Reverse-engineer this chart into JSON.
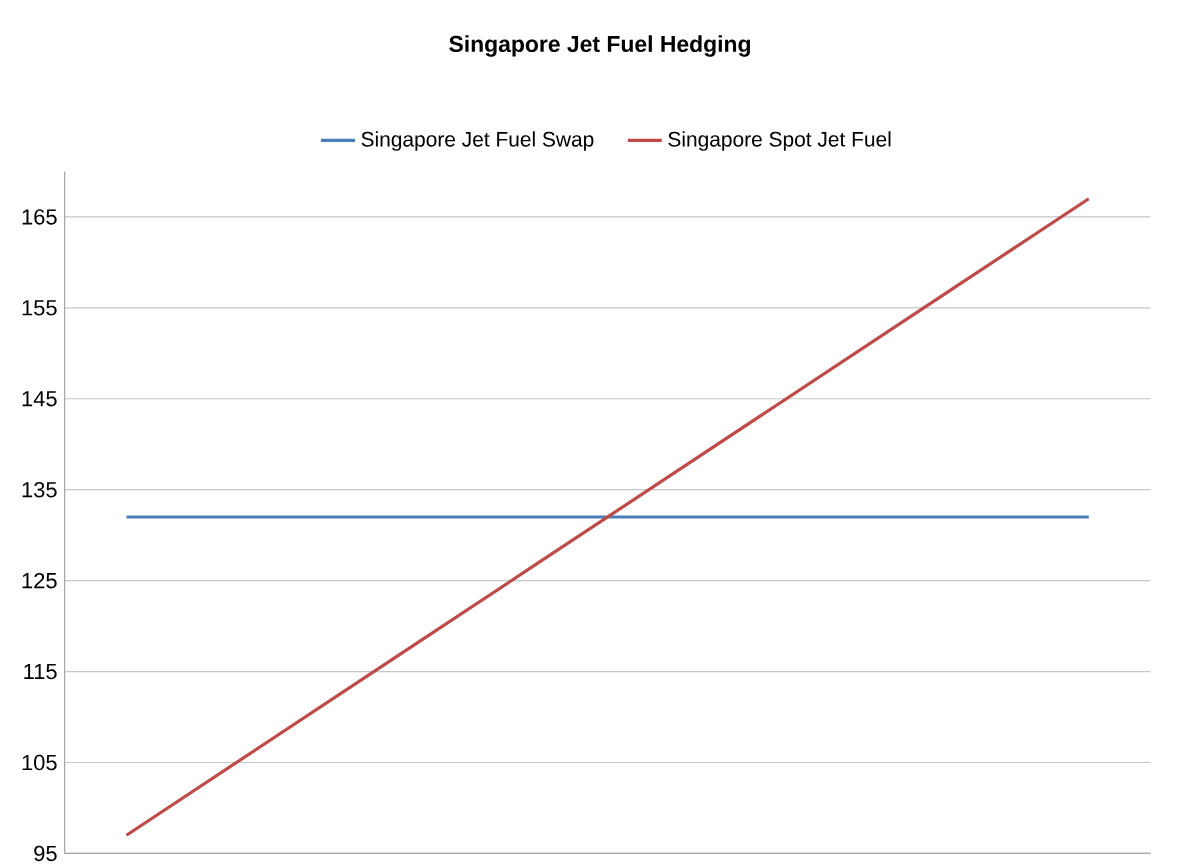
{
  "chart_data": {
    "type": "line",
    "title": "Singapore Jet Fuel Hedging",
    "categories": [
      null,
      null,
      null,
      null,
      null,
      null,
      null,
      null
    ],
    "series": [
      {
        "name": "Singapore Jet Fuel Swap",
        "color": "#4a7ebb",
        "values": [
          132,
          132,
          132,
          132,
          132,
          132,
          132,
          132
        ]
      },
      {
        "name": "Singapore Spot Jet Fuel",
        "color": "#be4b48",
        "values": [
          97,
          107,
          117,
          127,
          137,
          147,
          157,
          167
        ]
      }
    ],
    "ylim": [
      95,
      170
    ],
    "yticks": [
      95,
      105,
      115,
      125,
      135,
      145,
      155,
      165
    ],
    "grid": "y",
    "legend": "top",
    "marker": "none",
    "line_style": "solid"
  }
}
